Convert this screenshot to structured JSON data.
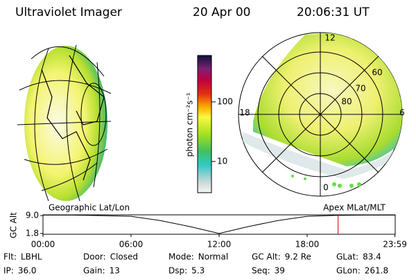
{
  "header": {
    "title": "Ultraviolet Imager",
    "date": "20 Apr 00",
    "time": "20:06:31 UT"
  },
  "colorbar": {
    "label": "photon cm⁻²s⁻¹",
    "log": true,
    "clim": [
      3,
      600
    ],
    "ticks": [
      10,
      100
    ]
  },
  "polar": {
    "mlt_labels": [
      "12",
      "18",
      "6",
      "0"
    ],
    "lat_labels": [
      "60",
      "70",
      "80"
    ]
  },
  "chart_data": {
    "type": "line",
    "ylabel": "GC Alt",
    "left_label": "Geographic Lat/Lon",
    "right_label": "Apex MLat/MLT",
    "x": [
      0,
      2,
      4,
      6,
      8,
      10,
      11,
      12,
      13,
      14,
      16,
      18,
      20,
      22,
      23.98
    ],
    "series": [
      {
        "name": "GC Alt",
        "color": "#000000",
        "values": [
          9.2,
          9.2,
          9.0,
          8.7,
          7.0,
          4.6,
          3.2,
          1.8,
          3.2,
          4.6,
          7.0,
          8.7,
          9.1,
          9.2,
          9.2
        ]
      }
    ],
    "marker_x": 20.11,
    "marker_color": "#cc0000",
    "xlim": [
      0,
      24
    ],
    "ylim": [
      1.5,
      9.3
    ],
    "xticks": [
      {
        "value": 0,
        "label": "00:00"
      },
      {
        "value": 6,
        "label": "06:00"
      },
      {
        "value": 12,
        "label": "12:00"
      },
      {
        "value": 18,
        "label": "18:00"
      },
      {
        "value": 23.98,
        "label": "23:59"
      }
    ],
    "yticks": [
      1.8,
      {
        "value": 9,
        "label": "9.0"
      }
    ]
  },
  "footer": {
    "rows": [
      [
        {
          "label": "Flt:",
          "value": "LBHL"
        },
        {
          "label": "Door:",
          "value": "Closed"
        },
        {
          "label": "Mode:",
          "value": "Normal"
        },
        {
          "label": "GC Alt:",
          "value": "9.2 Re"
        },
        {
          "label": "GLat:",
          "value": "83.4"
        }
      ],
      [
        {
          "label": "IP:",
          "value": "36.0"
        },
        {
          "label": "Gain:",
          "value": "13"
        },
        {
          "label": "Dsp:",
          "value": "5.3"
        },
        {
          "label": "Seq:",
          "value": "39"
        },
        {
          "label": "GLon:",
          "value": "261.8"
        }
      ]
    ]
  }
}
